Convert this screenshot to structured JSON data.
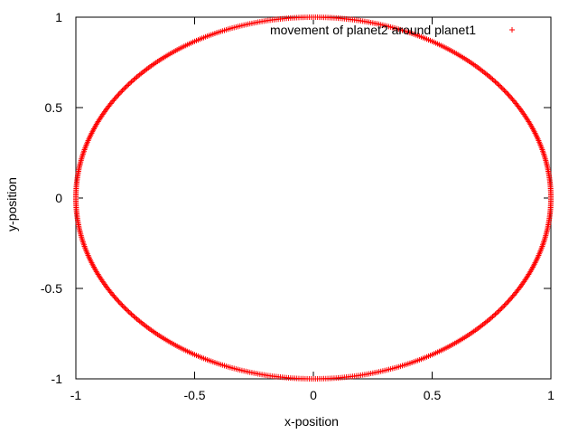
{
  "chart_data": {
    "type": "scatter",
    "title": "",
    "xlabel": "x-position",
    "ylabel": "y-position",
    "xlim": [
      -1,
      1
    ],
    "ylim": [
      -1,
      1
    ],
    "xticks": [
      "-1",
      "-0.5",
      "0",
      "0.5",
      "1"
    ],
    "yticks": [
      "-1",
      "-0.5",
      "0",
      "0.5",
      "1"
    ],
    "grid": false,
    "legend_position": "top-right",
    "marker": "+",
    "series": [
      {
        "name": "movement of planet2 around planet1",
        "color": "#ff0000",
        "shape": "circle",
        "center": [
          0,
          0
        ],
        "radius": 1,
        "point_count": 720
      }
    ]
  }
}
